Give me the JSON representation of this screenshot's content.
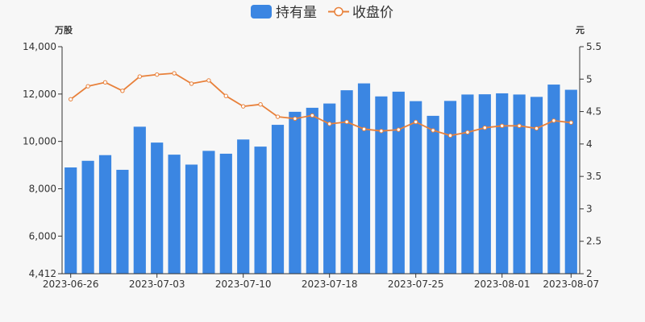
{
  "chart_data": {
    "type": "bar+line",
    "legend": {
      "placement": "top-center",
      "items": [
        {
          "label": "持有量",
          "color": "#3b86e2",
          "symbol": "bar"
        },
        {
          "label": "收盘价",
          "color": "#e8803a",
          "symbol": "line"
        }
      ]
    },
    "y_left": {
      "unit": "万股",
      "min": 4412,
      "max": 14000,
      "ticks": [
        "4,412",
        "6,000",
        "8,000",
        "10,000",
        "12,000",
        "14,000"
      ]
    },
    "y_right": {
      "unit": "元",
      "min": 2,
      "max": 5.5,
      "ticks": [
        "2",
        "2.5",
        "3",
        "3.5",
        "4",
        "4.5",
        "5",
        "5.5"
      ]
    },
    "x_ticks": [
      {
        "label": "2023-06-26",
        "index": 0
      },
      {
        "label": "2023-07-03",
        "index": 5
      },
      {
        "label": "2023-07-10",
        "index": 10
      },
      {
        "label": "2023-07-18",
        "index": 15
      },
      {
        "label": "2023-07-25",
        "index": 20
      },
      {
        "label": "2023-08-01",
        "index": 25
      },
      {
        "label": "2023-08-07",
        "index": 29
      }
    ],
    "categories": [
      "2023-06-26",
      "2023-06-27",
      "2023-06-28",
      "2023-06-29",
      "2023-06-30",
      "2023-07-03",
      "2023-07-04",
      "2023-07-05",
      "2023-07-06",
      "2023-07-07",
      "2023-07-10",
      "2023-07-11",
      "2023-07-12",
      "2023-07-13",
      "2023-07-14",
      "2023-07-18",
      "2023-07-19",
      "2023-07-20",
      "2023-07-21",
      "2023-07-24",
      "2023-07-25",
      "2023-07-26",
      "2023-07-27",
      "2023-07-28",
      "2023-07-31",
      "2023-08-01",
      "2023-08-02",
      "2023-08-03",
      "2023-08-04",
      "2023-08-07"
    ],
    "series": [
      {
        "name": "持有量",
        "kind": "bar",
        "axis": "left",
        "color": "#3b86e2",
        "values": [
          8900,
          9180,
          9420,
          8800,
          10620,
          9950,
          9440,
          9020,
          9600,
          9480,
          10080,
          9780,
          10700,
          11250,
          11420,
          11600,
          12160,
          12450,
          11900,
          12100,
          11700,
          11080,
          11710,
          11980,
          11990,
          12030,
          11980,
          11880,
          12400,
          12180
        ]
      },
      {
        "name": "收盘价",
        "kind": "line",
        "axis": "right",
        "color": "#e8803a",
        "values": [
          4.69,
          4.89,
          4.95,
          4.82,
          5.04,
          5.07,
          5.09,
          4.93,
          4.98,
          4.74,
          4.58,
          4.61,
          4.42,
          4.39,
          4.44,
          4.31,
          4.34,
          4.23,
          4.2,
          4.22,
          4.34,
          4.21,
          4.13,
          4.18,
          4.25,
          4.28,
          4.28,
          4.24,
          4.36,
          4.33
        ]
      }
    ]
  }
}
